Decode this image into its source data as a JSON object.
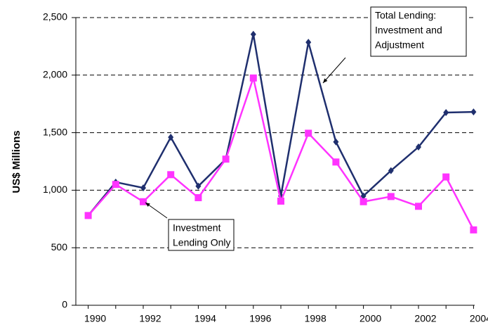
{
  "chart_data": {
    "type": "line",
    "y_label": "US$ Millions",
    "categories": [
      "1990",
      null,
      "1992",
      null,
      "1994",
      null,
      "1996",
      null,
      "1998",
      null,
      "2000",
      null,
      "2002",
      null,
      "2004"
    ],
    "series": [
      {
        "name": "Total Lending",
        "color": "#1f2f6e",
        "marker": "diamond",
        "values": [
          780,
          1070,
          1020,
          1460,
          1035,
          1270,
          2355,
          950,
          2285,
          1420,
          950,
          1170,
          1375,
          1675,
          1680
        ]
      },
      {
        "name": "Investment Lending",
        "color": "#ff33ff",
        "marker": "square",
        "values": [
          780,
          1050,
          900,
          1135,
          935,
          1270,
          1975,
          905,
          1495,
          1245,
          900,
          945,
          860,
          1115,
          655
        ]
      }
    ],
    "ylim": [
      0,
      2500
    ],
    "yticks": [
      0,
      500,
      {
        "value": 1000,
        "label": "1,000"
      },
      {
        "value": 1500,
        "label": "1,500"
      },
      {
        "value": 2000,
        "label": "2,000"
      },
      {
        "value": 2500,
        "label": "2,500"
      }
    ],
    "grid": true,
    "annotations": [
      {
        "lines": [
          "Total Lending:",
          "Investment and",
          "Adjustment"
        ]
      },
      {
        "lines": [
          "Investment",
          "Lending Only"
        ]
      }
    ]
  }
}
